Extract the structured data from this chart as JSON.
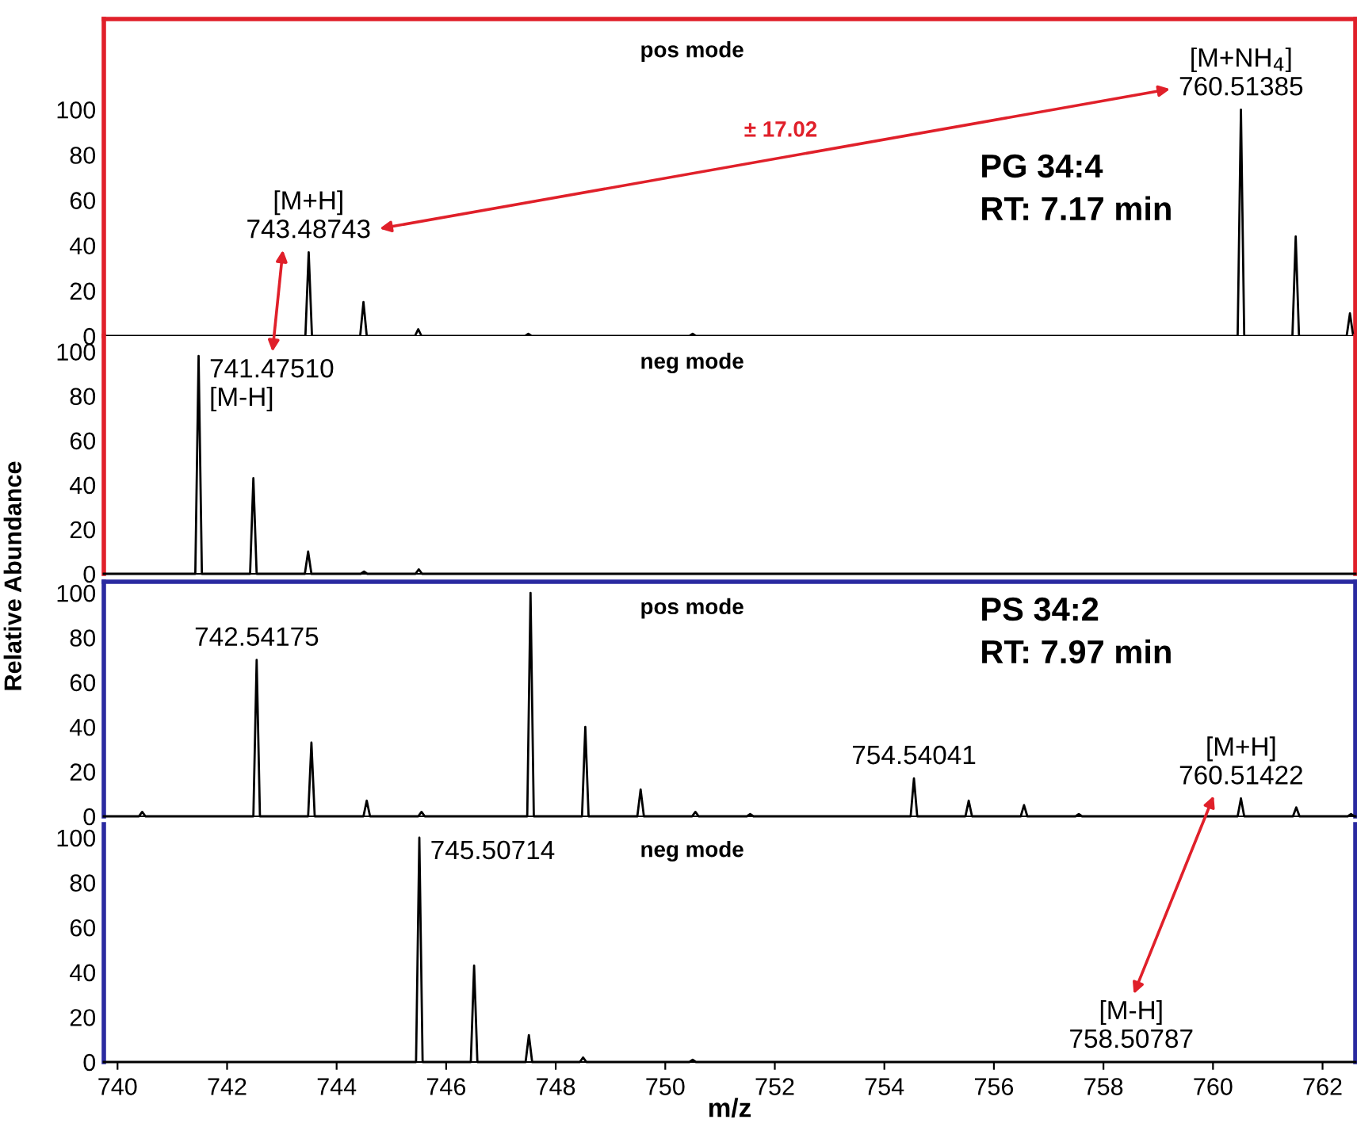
{
  "chart_data": [
    {
      "type": "line",
      "subtitle": "pos mode",
      "title": "PG 34:4\nRT: 7.17 min",
      "xlim": [
        739.75,
        762.6
      ],
      "ylim": [
        0,
        140
      ],
      "yticks": [
        0,
        20,
        40,
        60,
        80,
        100
      ],
      "tick_labels": "y",
      "marker": "none",
      "line_style": "solid",
      "series": [
        {
          "color": "#000000",
          "x": [
            739.75,
            743.43,
            743.49,
            743.55,
            744.43,
            744.49,
            744.55,
            745.43,
            745.49,
            745.55,
            747.44,
            747.5,
            747.56,
            750.44,
            750.5,
            750.56,
            760.45,
            760.51,
            760.57,
            761.45,
            761.51,
            761.57,
            762.44,
            762.5,
            762.56,
            762.6
          ],
          "values": [
            0,
            0,
            37,
            0,
            0,
            15,
            0,
            0,
            3,
            0,
            0,
            1,
            0,
            0,
            1,
            0,
            0,
            100,
            0,
            0,
            44,
            0,
            0,
            10,
            0,
            0
          ]
        }
      ],
      "annotations": [
        {
          "text": "[M+H]\n743.48743",
          "x": 743.48743,
          "y": 37
        },
        {
          "text": "[M+NH$_{4}$]\n760.51385",
          "x": 760.51385,
          "y": 100
        },
        "± 17.02"
      ]
    },
    {
      "type": "line",
      "subtitle": "neg mode",
      "ylabel": "Relative Abundance",
      "xlim": [
        739.75,
        762.6
      ],
      "ylim": [
        0,
        107
      ],
      "yticks": [
        0,
        20,
        40,
        60,
        80,
        100
      ],
      "tick_labels": "y",
      "marker": "none",
      "line_style": "solid",
      "series": [
        {
          "color": "#000000",
          "x": [
            739.75,
            741.42,
            741.48,
            741.54,
            742.42,
            742.48,
            742.54,
            743.42,
            743.48,
            743.54,
            744.44,
            744.5,
            744.56,
            745.44,
            745.5,
            745.56,
            762.6
          ],
          "values": [
            0,
            0,
            98,
            0,
            0,
            43,
            0,
            0,
            10,
            0,
            0,
            1,
            0,
            0,
            2,
            0,
            0
          ]
        }
      ],
      "annotations": [
        {
          "text": "741.47510\n[M-H]",
          "x": 741.4751,
          "y": 98
        }
      ]
    },
    {
      "type": "line",
      "subtitle": "pos mode",
      "title": "PS 34:2\nRT: 7.97 min",
      "xlim": [
        739.75,
        762.6
      ],
      "ylim": [
        0,
        105
      ],
      "yticks": [
        0,
        20,
        40,
        60,
        80,
        100
      ],
      "tick_labels": "y",
      "marker": "none",
      "line_style": "solid",
      "series": [
        {
          "color": "#000000",
          "x": [
            739.75,
            740.39,
            740.45,
            740.51,
            742.48,
            742.54,
            742.6,
            743.48,
            743.54,
            743.6,
            744.49,
            744.55,
            744.61,
            745.49,
            745.55,
            745.61,
            747.48,
            747.54,
            747.6,
            748.48,
            748.54,
            748.6,
            749.49,
            749.55,
            749.61,
            750.49,
            750.55,
            750.61,
            751.49,
            751.55,
            751.61,
            754.48,
            754.54,
            754.6,
            755.48,
            755.54,
            755.6,
            756.49,
            756.55,
            756.61,
            757.49,
            757.55,
            757.61,
            760.45,
            760.51,
            760.57,
            761.46,
            761.52,
            761.58,
            762.46,
            762.52,
            762.58,
            762.6
          ],
          "values": [
            0,
            0,
            2,
            0,
            0,
            70,
            0,
            0,
            33,
            0,
            0,
            7,
            0,
            0,
            2,
            0,
            0,
            100,
            0,
            0,
            40,
            0,
            0,
            12,
            0,
            0,
            2,
            0,
            0,
            1,
            0,
            0,
            17,
            0,
            0,
            7,
            0,
            0,
            5,
            0,
            0,
            1,
            0,
            0,
            8,
            0,
            0,
            4,
            0,
            0,
            1,
            0,
            0
          ]
        }
      ],
      "annotations": [
        {
          "text": "[M+H]\n760.51422",
          "x": 760.51422,
          "y": 8
        },
        {
          "text": "742.54175",
          "x": 742.54175,
          "y": 70
        },
        {
          "text": "754.54041",
          "x": 754.54041,
          "y": 17
        }
      ]
    },
    {
      "type": "line",
      "subtitle": "neg mode",
      "xlabel": "m/z",
      "xlim": [
        739.75,
        762.6
      ],
      "ylim": [
        0,
        106
      ],
      "xticks": [
        740,
        742,
        744,
        746,
        748,
        750,
        752,
        754,
        756,
        758,
        760,
        762
      ],
      "yticks": [
        0,
        20,
        40,
        60,
        80,
        100
      ],
      "marker": "none",
      "line_style": "solid",
      "series": [
        {
          "color": "#000000",
          "x": [
            739.75,
            745.45,
            745.51,
            745.57,
            746.45,
            746.51,
            746.57,
            747.45,
            747.51,
            747.57,
            748.44,
            748.5,
            748.56,
            750.44,
            750.5,
            750.56,
            762.6
          ],
          "values": [
            0,
            0,
            100,
            0,
            0,
            43,
            0,
            0,
            12,
            0,
            0,
            2,
            0,
            0,
            1,
            0,
            0
          ]
        }
      ],
      "annotations": [
        {
          "text": "[M-H]\n758.50787",
          "x": 758.50787,
          "y": 0
        },
        {
          "text": "745.50714",
          "x": 745.50714,
          "y": 100
        }
      ]
    }
  ]
}
